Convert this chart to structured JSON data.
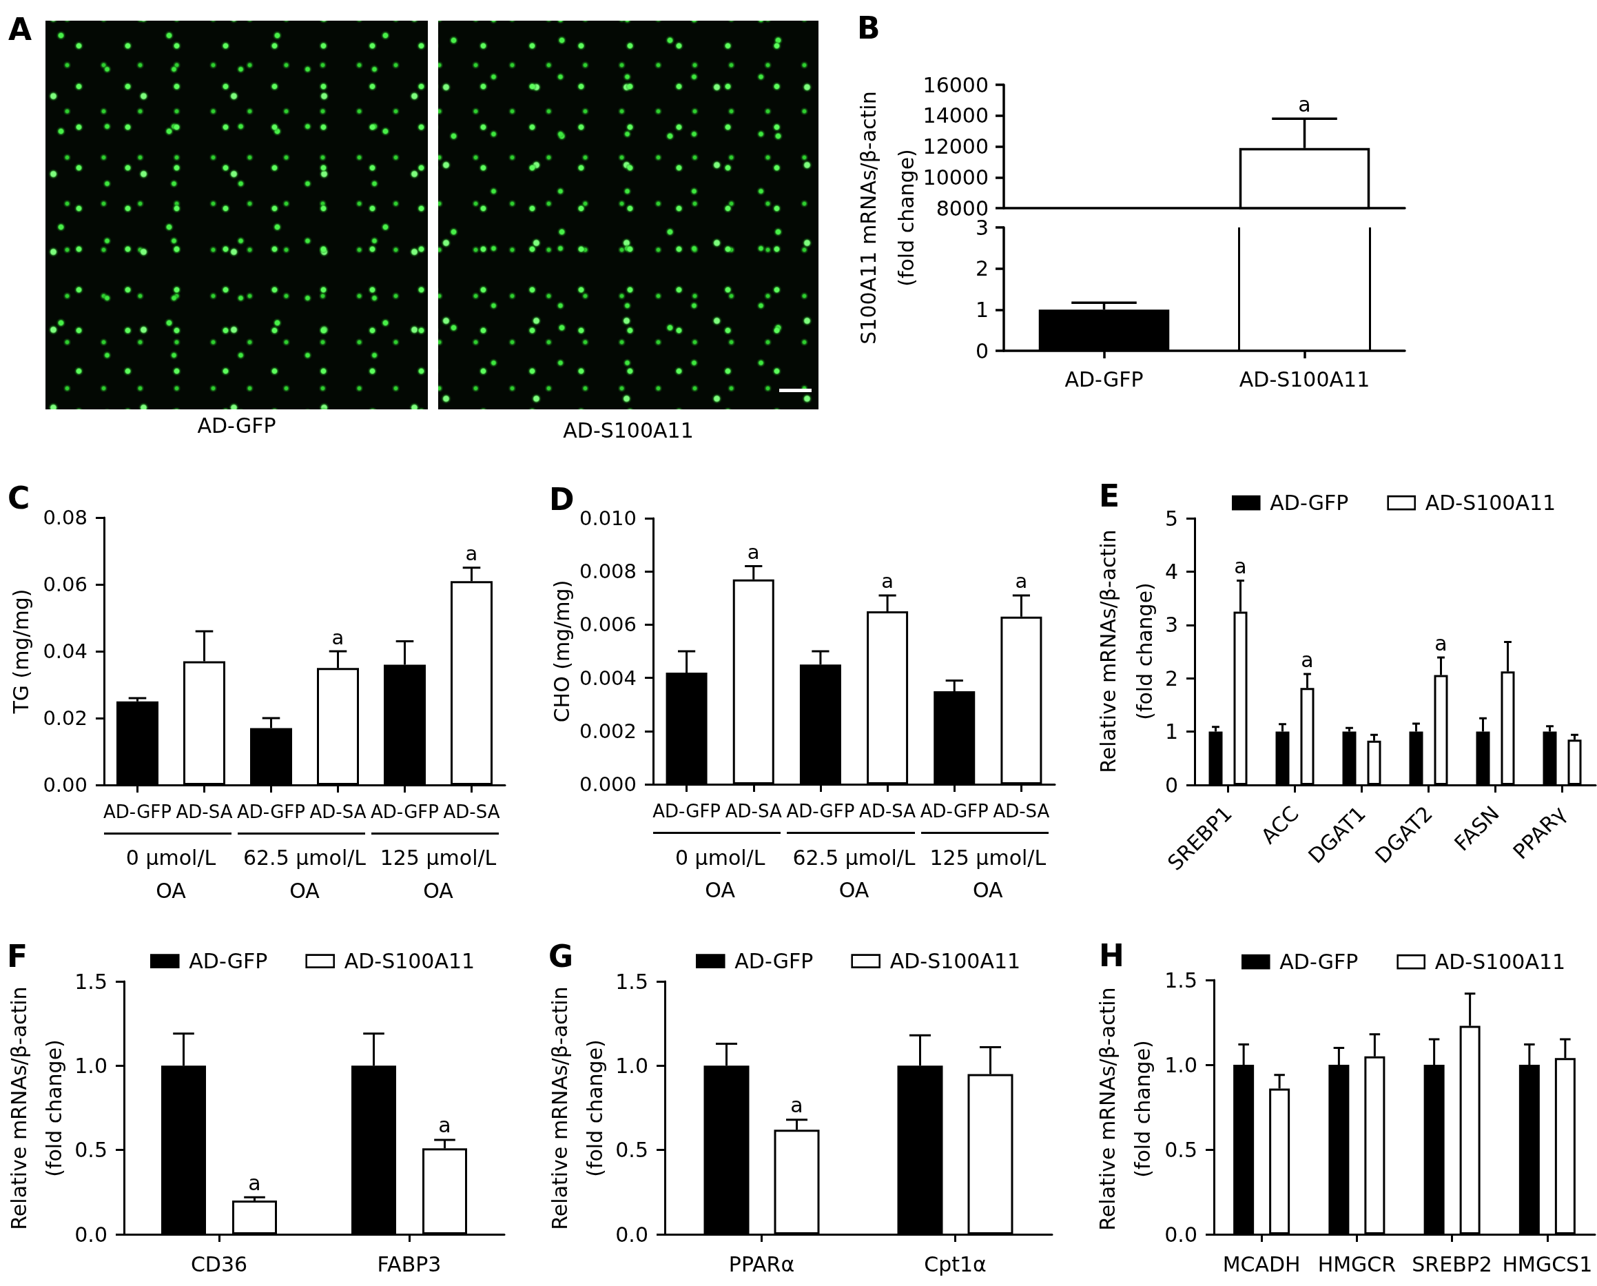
{
  "chart_data": [
    {
      "type": "other",
      "title": "A",
      "annotations": [
        "AD-GFP",
        "AD-S100A11"
      ]
    },
    {
      "type": "bar",
      "title": "B",
      "ylabel": "S100A11 mRNAs/β-actin\n(fold change)",
      "categories": [
        null,
        null
      ],
      "values": [
        null,
        11900
      ],
      "color": "#ffffff",
      "errors": [
        null,
        [
          11900,
          13800
        ]
      ],
      "ylim": [
        8000,
        16000
      ],
      "yticks": [
        8000,
        10000,
        12000,
        14000,
        16000
      ],
      "tick_labels": "y",
      "annotations": [
        "a"
      ]
    },
    {
      "type": "bar",
      "categories": [
        "AD-GFP",
        "AD-S100A11"
      ],
      "values": [
        1,
        null
      ],
      "color": "#000000",
      "errors": [
        [
          1,
          1.17
        ],
        null
      ],
      "ylim": [
        0,
        3
      ],
      "yticks": [
        0,
        1,
        2,
        3
      ]
    },
    {
      "type": "bar",
      "title": "C",
      "ylabel": "TG (mg/mg)",
      "categories": [
        "AD-GFP",
        "AD-SA",
        "AD-GFP",
        "AD-SA",
        "AD-GFP",
        "AD-SA"
      ],
      "values": [
        0.025,
        0.037,
        0.017,
        0.035,
        0.036,
        0.061
      ],
      "colors": [
        "#000000",
        "#ffffff",
        "#000000",
        "#ffffff",
        "#000000",
        "#ffffff"
      ],
      "errors": [
        [
          0.025,
          0.026
        ],
        [
          0.037,
          0.046
        ],
        [
          0.017,
          0.02
        ],
        [
          0.035,
          0.04
        ],
        [
          0.036,
          0.043
        ],
        [
          0.061,
          0.065
        ]
      ],
      "ylim": [
        0,
        0.08
      ],
      "yticks": [
        {
          "value": 0,
          "label": "0.00"
        },
        0.02,
        0.04,
        0.06,
        0.08
      ],
      "annotations": [
        "0 μmol/L\nOA",
        "62.5 μmol/L\nOA",
        "125 μmol/L\nOA",
        "a",
        "a"
      ]
    },
    {
      "type": "bar",
      "title": "D",
      "ylabel": "CHO (mg/mg)",
      "categories": [
        "AD-GFP",
        "AD-SA",
        "AD-GFP",
        "AD-SA",
        "AD-GFP",
        "AD-SA"
      ],
      "values": [
        0.0042,
        0.0077,
        0.0045,
        0.0065,
        0.0035,
        0.0063
      ],
      "colors": [
        "#000000",
        "#ffffff",
        "#000000",
        "#ffffff",
        "#000000",
        "#ffffff"
      ],
      "errors": [
        [
          0.0042,
          0.005
        ],
        [
          0.0077,
          0.0082
        ],
        [
          0.0045,
          0.005
        ],
        [
          0.0065,
          0.0071
        ],
        [
          0.0035,
          0.0039
        ],
        [
          0.0063,
          0.0071
        ]
      ],
      "ylim": [
        0,
        0.01
      ],
      "yticks": [
        {
          "value": 0,
          "label": "0.000"
        },
        0.002,
        0.004,
        0.006,
        0.008,
        {
          "value": 0.01,
          "label": "0.010"
        }
      ],
      "annotations": [
        "0 μmol/L\nOA",
        "62.5 μmol/L\nOA",
        "125 μmol/L\nOA",
        "a",
        "a",
        "a"
      ]
    },
    {
      "type": "bar",
      "title": "E",
      "ylabel": "Relative mRNAs/β-actin\n(fold change)",
      "categories": [
        "SREBP1",
        "ACC",
        "DGAT1",
        "DGAT2",
        "FASN",
        "PPARγ"
      ],
      "series": [
        {
          "name": "AD-GFP",
          "color": "#000000",
          "values": [
            1,
            1,
            1,
            1,
            1,
            1
          ],
          "errors": [
            [
              1,
              1.09
            ],
            [
              1,
              1.14
            ],
            [
              1,
              1.07
            ],
            [
              1,
              1.15
            ],
            [
              1,
              1.25
            ],
            [
              1,
              1.1
            ]
          ]
        },
        {
          "name": "AD-S100A11",
          "color": "#ffffff",
          "values": [
            3.25,
            1.82,
            0.83,
            2.06,
            2.13,
            0.85
          ],
          "errors": [
            [
              3.25,
              3.83
            ],
            [
              1.82,
              2.08
            ],
            [
              0.83,
              0.94
            ],
            [
              2.06,
              2.39
            ],
            [
              2.13,
              2.68
            ],
            [
              0.85,
              0.94
            ]
          ]
        }
      ],
      "ylim": [
        0,
        5
      ],
      "yticks": [
        0,
        1,
        2,
        3,
        4,
        5
      ],
      "legend": "top",
      "annotations": [
        "a",
        "a",
        "a"
      ]
    },
    {
      "type": "bar",
      "title": "F",
      "ylabel": "Relative mRNAs/β-actin\n(fold change)",
      "categories": [
        "CD36",
        "FABP3"
      ],
      "series": [
        {
          "name": "AD-GFP",
          "color": "#000000",
          "values": [
            1,
            1
          ],
          "errors": [
            [
              1,
              1.19
            ],
            [
              1,
              1.19
            ]
          ]
        },
        {
          "name": "AD-S100A11",
          "color": "#ffffff",
          "values": [
            0.2,
            0.51
          ],
          "errors": [
            [
              0.2,
              0.22
            ],
            [
              0.51,
              0.56
            ]
          ]
        }
      ],
      "ylim": [
        0,
        1.5
      ],
      "yticks": [
        {
          "value": 0,
          "label": "0.0"
        },
        0.5,
        {
          "value": 1,
          "label": "1.0"
        },
        1.5
      ],
      "legend": "top",
      "annotations": [
        "a",
        "a"
      ]
    },
    {
      "type": "bar",
      "title": "G",
      "ylabel": "Relative mRNAs/β-actin\n(fold change)",
      "categories": [
        "PPARα",
        "Cpt1α"
      ],
      "series": [
        {
          "name": "AD-GFP",
          "color": "#000000",
          "values": [
            1,
            1
          ],
          "errors": [
            [
              1,
              1.13
            ],
            [
              1,
              1.18
            ]
          ]
        },
        {
          "name": "AD-S100A11",
          "color": "#ffffff",
          "values": [
            0.62,
            0.95
          ],
          "errors": [
            [
              0.62,
              0.68
            ],
            [
              0.95,
              1.11
            ]
          ]
        }
      ],
      "ylim": [
        0,
        1.5
      ],
      "yticks": [
        {
          "value": 0,
          "label": "0.0"
        },
        0.5,
        {
          "value": 1,
          "label": "1.0"
        },
        1.5
      ],
      "legend": "top",
      "annotations": [
        "a"
      ]
    },
    {
      "type": "bar",
      "title": "H",
      "ylabel": "Relative mRNAs/β-actin\n(fold change)",
      "categories": [
        "MCADH",
        "HMGCR",
        "SREBP2",
        "HMGCS1"
      ],
      "series": [
        {
          "name": "AD-GFP",
          "color": "#000000",
          "values": [
            1,
            1,
            1,
            1
          ],
          "errors": [
            [
              1,
              1.12
            ],
            [
              1,
              1.1
            ],
            [
              1,
              1.15
            ],
            [
              1,
              1.12
            ]
          ]
        },
        {
          "name": "AD-S100A11",
          "color": "#ffffff",
          "values": [
            0.86,
            1.05,
            1.23,
            1.04
          ],
          "errors": [
            [
              0.86,
              0.94
            ],
            [
              1.05,
              1.18
            ],
            [
              1.23,
              1.42
            ],
            [
              1.04,
              1.15
            ]
          ]
        }
      ],
      "ylim": [
        0,
        1.5
      ],
      "yticks": [
        {
          "value": 0,
          "label": "0.0"
        },
        0.5,
        {
          "value": 1,
          "label": "1.0"
        },
        1.5
      ],
      "legend": "top"
    }
  ]
}
